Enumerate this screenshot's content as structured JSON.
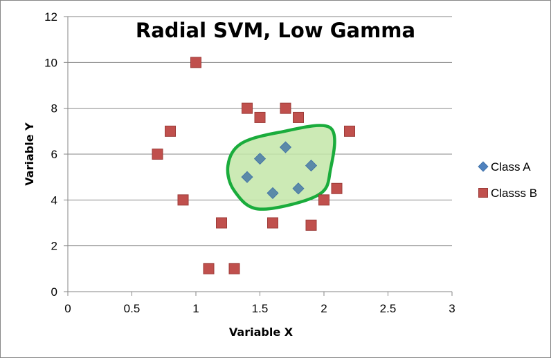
{
  "chart_data": {
    "type": "scatter",
    "title": "Radial SVM, Low Gamma",
    "xlabel": "Variable X",
    "ylabel": "Variable Y",
    "xlim": [
      0,
      3
    ],
    "ylim": [
      0,
      12
    ],
    "x_ticks": [
      "0",
      "0.5",
      "1",
      "1.5",
      "2",
      "2.5",
      "3"
    ],
    "y_ticks": [
      "0",
      "2",
      "4",
      "6",
      "8",
      "10",
      "12"
    ],
    "grid": "horizontal",
    "legend_position": "right",
    "colors": {
      "class_a": "#4f81bd",
      "class_b": "#c0504d",
      "region_fill": "#c3e6a8",
      "region_stroke": "#1aac3c"
    },
    "series": [
      {
        "name": "Class A",
        "marker": "diamond",
        "points": [
          [
            1.4,
            5.0
          ],
          [
            1.5,
            5.8
          ],
          [
            1.6,
            4.3
          ],
          [
            1.7,
            6.3
          ],
          [
            1.8,
            4.5
          ],
          [
            1.9,
            5.5
          ]
        ]
      },
      {
        "name": "Classs B",
        "marker": "square",
        "points": [
          [
            1.0,
            10.0
          ],
          [
            1.4,
            8.0
          ],
          [
            1.5,
            7.6
          ],
          [
            1.7,
            8.0
          ],
          [
            1.8,
            7.6
          ],
          [
            2.2,
            7.0
          ],
          [
            0.8,
            7.0
          ],
          [
            0.7,
            6.0
          ],
          [
            0.9,
            4.0
          ],
          [
            2.1,
            4.5
          ],
          [
            2.0,
            4.0
          ],
          [
            1.2,
            3.0
          ],
          [
            1.6,
            3.0
          ],
          [
            1.9,
            2.9
          ],
          [
            1.1,
            1.0
          ],
          [
            1.3,
            1.0
          ]
        ]
      }
    ],
    "decision_region": {
      "shape": "closed-curve",
      "points": [
        [
          1.25,
          5.5
        ],
        [
          1.35,
          6.45
        ],
        [
          1.65,
          6.95
        ],
        [
          2.05,
          7.15
        ],
        [
          2.05,
          5.3
        ],
        [
          1.95,
          4.2
        ],
        [
          1.5,
          3.6
        ],
        [
          1.3,
          4.4
        ]
      ]
    }
  }
}
